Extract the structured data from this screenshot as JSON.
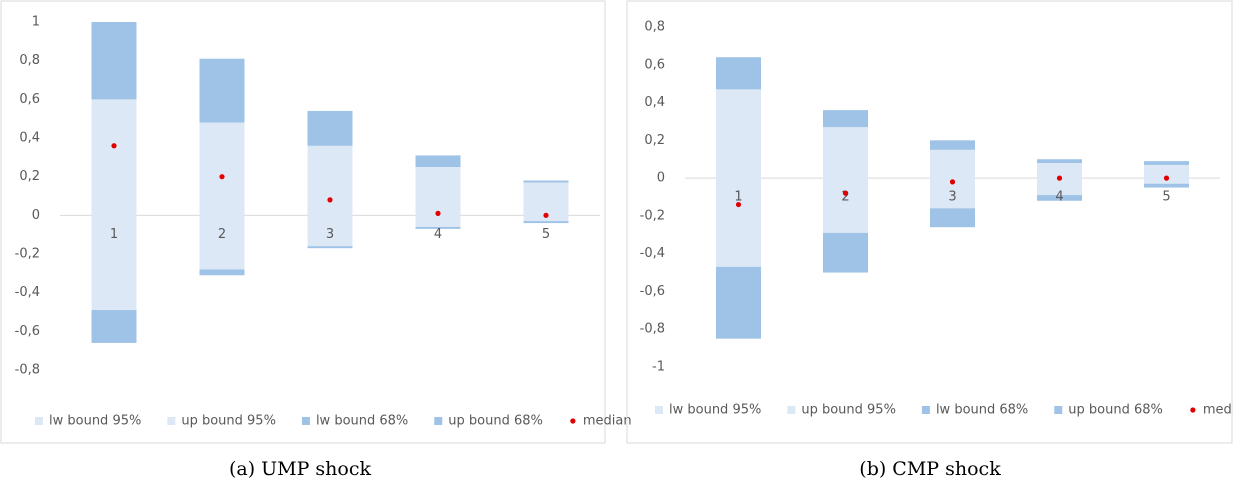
{
  "chart_data": [
    {
      "type": "bar",
      "caption": "(a) UMP shock",
      "categories": [
        "1",
        "2",
        "3",
        "4",
        "5"
      ],
      "series": [
        {
          "name": "lw bound 95%",
          "color": "#dde8f6",
          "values": [
            -0.66,
            -0.31,
            -0.17,
            -0.07,
            -0.04
          ]
        },
        {
          "name": "up bound 95%",
          "color": "#dde8f6",
          "values": [
            1.0,
            0.81,
            0.54,
            0.31,
            0.18
          ]
        },
        {
          "name": "lw bound 68%",
          "color": "#9fc3e6",
          "values": [
            -0.49,
            -0.28,
            -0.16,
            -0.06,
            -0.03
          ]
        },
        {
          "name": "up bound 68%",
          "color": "#9fc3e6",
          "values": [
            0.6,
            0.48,
            0.36,
            0.25,
            0.17
          ]
        },
        {
          "name": "median",
          "color": "#e00000",
          "values": [
            0.36,
            0.2,
            0.08,
            0.01,
            0.0
          ]
        }
      ],
      "ylim": [
        -0.8,
        1
      ],
      "yticks": [
        1,
        {
          "value": 0.8,
          "label": "0,8"
        },
        {
          "value": 0.6,
          "label": "0,6"
        },
        {
          "value": 0.4,
          "label": "0,4"
        },
        {
          "value": 0.2,
          "label": "0,2"
        },
        0,
        {
          "value": -0.2,
          "label": "-0,2"
        },
        {
          "value": -0.4,
          "label": "-0,4"
        },
        {
          "value": -0.6,
          "label": "-0,6"
        },
        {
          "value": -0.8,
          "label": "-0,8"
        }
      ]
    },
    {
      "type": "bar",
      "caption": "(b) CMP shock",
      "categories": [
        "1",
        "2",
        "3",
        "4",
        "5"
      ],
      "series": [
        {
          "name": "lw bound 95%",
          "color": "#dde8f6",
          "values": [
            -0.85,
            -0.5,
            -0.26,
            -0.12,
            -0.05
          ]
        },
        {
          "name": "up bound 95%",
          "color": "#dde8f6",
          "values": [
            0.64,
            0.36,
            0.2,
            0.1,
            0.09
          ]
        },
        {
          "name": "lw bound 68%",
          "color": "#9fc3e6",
          "values": [
            -0.47,
            -0.29,
            -0.16,
            -0.09,
            -0.03
          ]
        },
        {
          "name": "up bound 68%",
          "color": "#9fc3e6",
          "values": [
            0.47,
            0.27,
            0.15,
            0.08,
            0.07
          ]
        },
        {
          "name": "median",
          "color": "#e00000",
          "values": [
            -0.14,
            -0.08,
            -0.02,
            0.0,
            0.0
          ]
        }
      ],
      "ylim": [
        -1,
        0.8
      ],
      "yticks": [
        {
          "value": 0.8,
          "label": "0,8"
        },
        {
          "value": 0.6,
          "label": "0,6"
        },
        {
          "value": 0.4,
          "label": "0,4"
        },
        {
          "value": 0.2,
          "label": "0,2"
        },
        0,
        {
          "value": -0.2,
          "label": "-0,2"
        },
        {
          "value": -0.4,
          "label": "-0,4"
        },
        {
          "value": -0.6,
          "label": "-0,6"
        },
        {
          "value": -0.8,
          "label": "-0,8"
        },
        -1
      ]
    }
  ]
}
